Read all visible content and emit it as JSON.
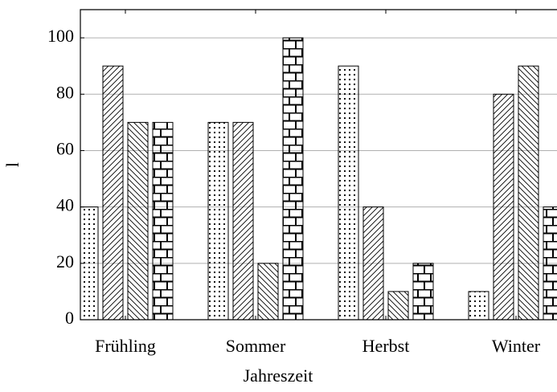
{
  "chart_data": {
    "type": "bar",
    "categories": [
      "Frühling",
      "Sommer",
      "Herbst",
      "Winter"
    ],
    "xlabel": "Jahreszeit",
    "ylabel": "l",
    "series": [
      {
        "pattern": "dots",
        "color": "#000000",
        "values": [
          40,
          70,
          90,
          10
        ]
      },
      {
        "pattern": "north-east-lines",
        "color": "#000000",
        "values": [
          90,
          70,
          40,
          80
        ]
      },
      {
        "pattern": "north-west-lines",
        "color": "#000000",
        "values": [
          70,
          20,
          10,
          90
        ]
      },
      {
        "pattern": "bricks",
        "color": "#000000",
        "values": [
          70,
          100,
          20,
          40
        ]
      }
    ],
    "ylim": [
      0,
      110
    ],
    "yticks": [
      0,
      20,
      40,
      60,
      80,
      100
    ],
    "grid": true
  }
}
